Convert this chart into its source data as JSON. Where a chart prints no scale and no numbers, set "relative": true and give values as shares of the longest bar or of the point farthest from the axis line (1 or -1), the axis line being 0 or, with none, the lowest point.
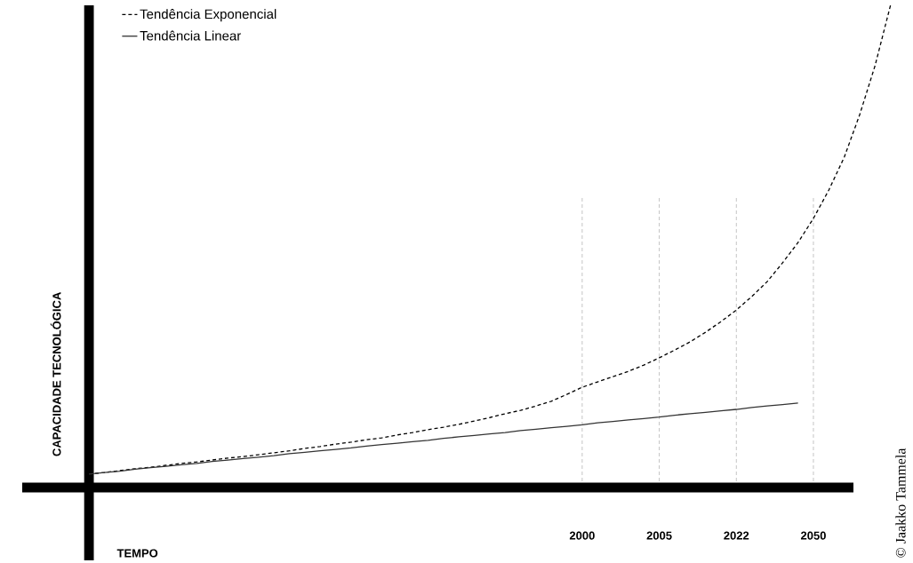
{
  "chart_data": {
    "type": "line",
    "relative": true,
    "xlabel": "TEMPO",
    "ylabel": "CAPACIDADE TECNOLÓGICA",
    "legend": "top left",
    "categories": [
      null,
      null,
      null,
      null,
      null,
      null,
      null,
      null,
      null,
      null,
      null,
      null,
      null,
      null,
      null,
      null,
      null,
      null,
      null,
      null,
      null,
      null,
      null,
      null,
      null,
      null,
      null,
      null,
      null,
      null,
      null,
      null,
      "2000",
      null,
      null,
      null,
      null,
      "2005",
      null,
      null,
      null,
      null,
      "2022",
      null,
      null,
      null,
      null,
      "2050",
      null,
      null,
      null,
      null,
      null
    ],
    "series": [
      {
        "name": "Tendência Exponencial",
        "color": "#000000",
        "line_style": "dashed",
        "values": [
          0.028,
          0.031,
          0.035,
          0.039,
          0.042,
          0.046,
          0.05,
          0.053,
          0.057,
          0.061,
          0.064,
          0.068,
          0.072,
          0.076,
          0.081,
          0.085,
          0.09,
          0.094,
          0.099,
          0.103,
          0.109,
          0.114,
          0.12,
          0.125,
          0.131,
          0.138,
          0.145,
          0.153,
          0.16,
          0.169,
          0.179,
          0.193,
          0.208,
          0.219,
          0.23,
          0.241,
          0.254,
          0.269,
          0.285,
          0.302,
          0.322,
          0.344,
          0.368,
          0.396,
          0.427,
          0.466,
          0.508,
          0.558,
          0.617,
          0.685,
          0.773,
          0.875,
          1
        ]
      },
      {
        "name": "Tendência Linear",
        "color": "#333333",
        "line_style": "solid",
        "values": [
          0.028,
          0.031,
          0.034,
          0.038,
          0.041,
          0.044,
          0.047,
          0.05,
          0.054,
          0.057,
          0.06,
          0.063,
          0.066,
          0.07,
          0.073,
          0.076,
          0.079,
          0.082,
          0.086,
          0.089,
          0.092,
          0.095,
          0.098,
          0.102,
          0.105,
          0.108,
          0.111,
          0.114,
          0.118,
          0.121,
          0.124,
          0.127,
          0.13,
          0.134,
          0.137,
          0.14,
          0.143,
          0.146,
          0.15,
          0.153,
          0.156,
          0.159,
          0.162,
          0.166,
          0.169,
          0.172,
          0.175,
          null,
          null,
          null,
          null,
          null,
          null
        ]
      }
    ],
    "ref_lines": [
      {
        "axis": "x",
        "value": "2000",
        "color": "#aaaaaa",
        "line_style": "dashed"
      },
      {
        "axis": "x",
        "value": "2005",
        "color": "#aaaaaa",
        "line_style": "dashed"
      },
      {
        "axis": "x",
        "value": "2022",
        "color": "#aaaaaa",
        "line_style": "dashed"
      },
      {
        "axis": "x",
        "value": "2050",
        "color": "#aaaaaa",
        "line_style": "dashed"
      }
    ],
    "annotations": [
      "© Jaakko Tammela"
    ]
  }
}
